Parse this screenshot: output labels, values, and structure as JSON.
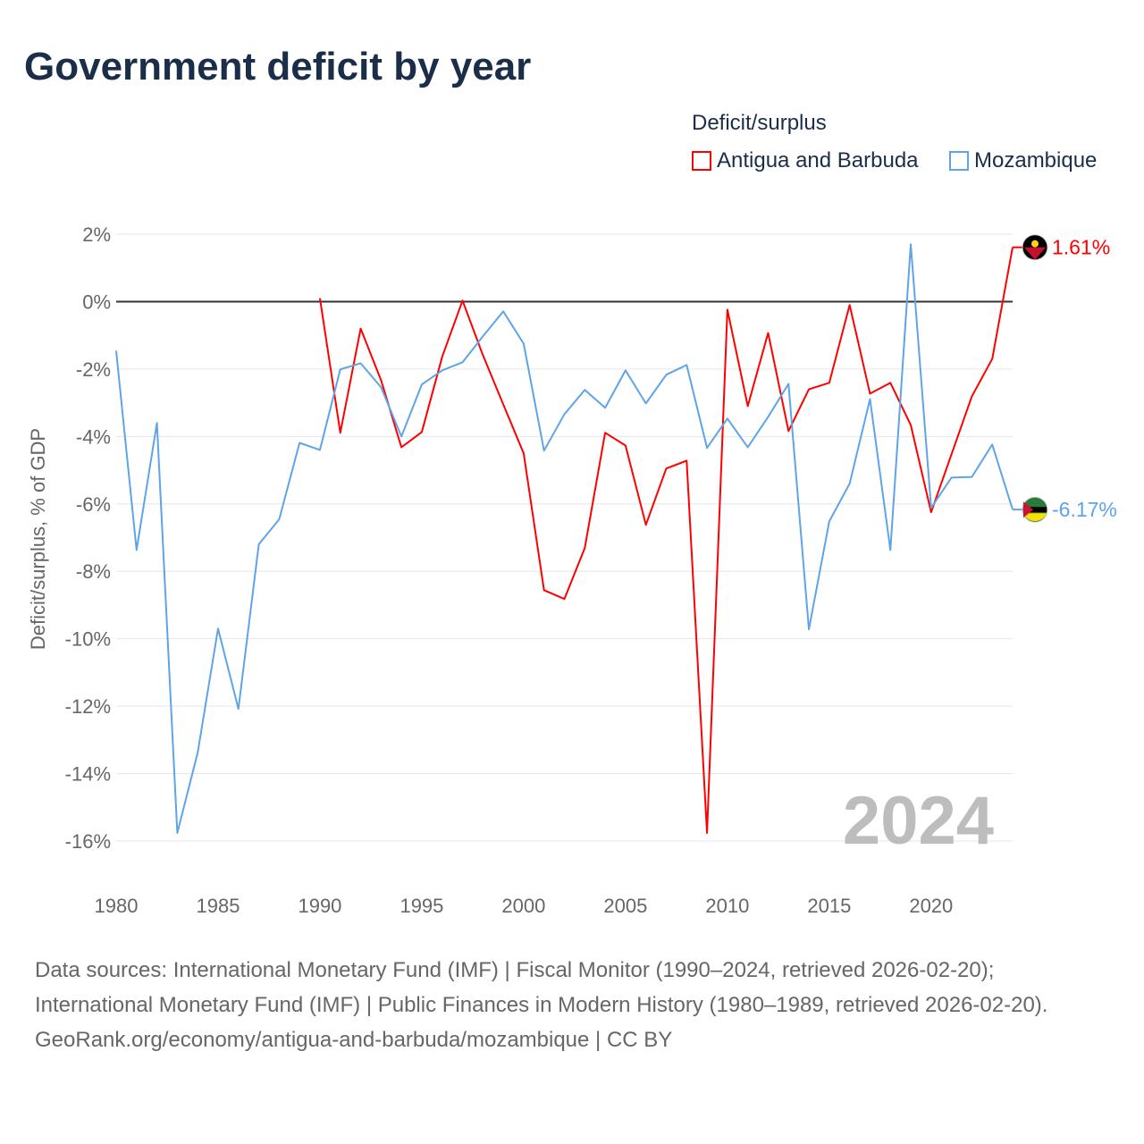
{
  "title": "Government deficit by year",
  "legend": {
    "title": "Deficit/surplus",
    "entries": [
      {
        "name": "Antigua and Barbuda",
        "color": "#ff0000"
      },
      {
        "name": "Mozambique",
        "color": "#5ea4e8"
      }
    ]
  },
  "footer": {
    "sources": "Data sources: International Monetary Fund (IMF) | Fiscal Monitor (1990–2024, retrieved 2026-02-20); International Monetary Fund (IMF) | Public Finances in Modern History (1980–1989, retrieved 2026-02-20).",
    "credit": "GeoRank.org/economy/antigua-and-barbuda/mozambique | CC BY"
  },
  "chart_data": {
    "type": "line",
    "title": "Government deficit by year",
    "ylabel": "Deficit/surplus, % of GDP",
    "xlabel": "",
    "ylim": [
      -16,
      2
    ],
    "xlim": [
      1980,
      2024
    ],
    "yticks": [
      2,
      0,
      -2,
      -4,
      -6,
      -8,
      -10,
      -12,
      -14,
      -16
    ],
    "ytick_labels": [
      "2%",
      "0%",
      "-2%",
      "-4%",
      "-6%",
      "-8%",
      "-10%",
      "-12%",
      "-14%",
      "-16%"
    ],
    "xticks": [
      1980,
      1985,
      1990,
      1995,
      2000,
      2005,
      2010,
      2015,
      2020
    ],
    "xtick_labels": [
      "1980",
      "1985",
      "1990",
      "1995",
      "2000",
      "2005",
      "2010",
      "2015",
      "2020"
    ],
    "year_watermark": "2024",
    "grid": true,
    "legend_position": "top-right",
    "series": [
      {
        "name": "Antigua and Barbuda",
        "color": "#ff0000",
        "end_label": "1.61%",
        "start_year": 1990,
        "values": [
          0.1,
          -3.89,
          -0.8,
          -2.33,
          -4.32,
          -3.87,
          -1.64,
          0.03,
          -1.59,
          -3.05,
          -4.5,
          -8.56,
          -8.82,
          -7.31,
          -3.89,
          -4.27,
          -6.62,
          -4.95,
          -4.72,
          -15.76,
          -0.24,
          -3.1,
          -0.93,
          -3.84,
          -2.6,
          -2.41,
          -0.1,
          -2.73,
          -2.41,
          -3.66,
          -6.25,
          -4.53,
          -2.81,
          -1.7,
          1.61
        ]
      },
      {
        "name": "Mozambique",
        "color": "#5ea4e8",
        "end_label": "-6.17%",
        "start_year": 1980,
        "values": [
          -1.46,
          -7.37,
          -3.6,
          -15.76,
          -13.38,
          -9.7,
          -12.08,
          -7.2,
          -6.46,
          -4.19,
          -4.4,
          -2.01,
          -1.83,
          -2.54,
          -4.0,
          -2.46,
          -2.04,
          -1.8,
          -1.03,
          -0.29,
          -1.25,
          -4.42,
          -3.34,
          -2.62,
          -3.15,
          -2.04,
          -3.02,
          -2.17,
          -1.88,
          -4.34,
          -3.47,
          -4.32,
          -3.42,
          -2.44,
          -9.72,
          -6.52,
          -5.4,
          -2.89,
          -7.37,
          1.7,
          -6.12,
          -5.22,
          -5.2,
          -4.24,
          -6.17
        ]
      }
    ]
  }
}
